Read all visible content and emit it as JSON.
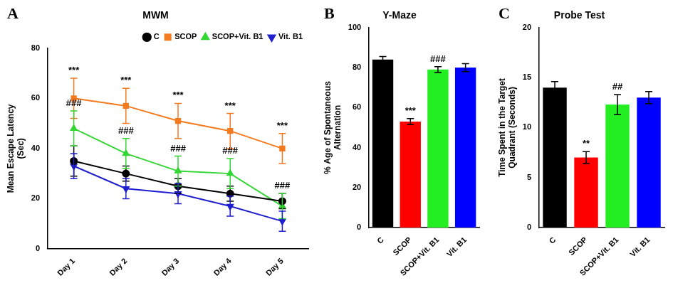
{
  "chart_data": [
    {
      "panel": "A",
      "type": "line",
      "title": "MWM",
      "y_label": [
        "Mean Escape Latency",
        "(Sec)"
      ],
      "categories": [
        "Day 1",
        "Day 2",
        "Day 3",
        "Day 4",
        "Day 5"
      ],
      "series": [
        {
          "name": "C",
          "color": "#000000",
          "marker": "circle",
          "values": [
            35,
            30,
            25,
            22,
            19
          ],
          "errors": [
            6,
            3,
            3,
            3,
            3
          ],
          "annotations": [
            null,
            null,
            null,
            null,
            null
          ]
        },
        {
          "name": "SCOP",
          "color": "#f47a20",
          "marker": "square",
          "values": [
            60,
            57,
            51,
            47,
            40
          ],
          "errors": [
            8,
            7,
            7,
            7,
            6
          ],
          "annotations": [
            "***",
            "***",
            "***",
            "***",
            "***"
          ]
        },
        {
          "name": "SCOP+Vit. B1",
          "color": "#33d633",
          "marker": "triangle",
          "values": [
            48,
            38,
            31,
            30,
            17
          ],
          "errors": [
            7,
            6,
            6,
            6,
            5
          ],
          "annotations": [
            "###",
            "###",
            "###",
            "###",
            "###"
          ]
        },
        {
          "name": "Vit. B1",
          "color": "#1f1fd0",
          "marker": "triangle-down",
          "values": [
            33,
            24,
            22,
            17,
            11
          ],
          "errors": [
            5,
            4,
            4,
            4,
            4
          ],
          "annotations": [
            null,
            null,
            null,
            null,
            null
          ]
        }
      ],
      "ylim": [
        0,
        80
      ],
      "yticks": [
        0,
        20,
        40,
        60,
        80
      ],
      "grid": false,
      "legend": "top"
    },
    {
      "panel": "B",
      "type": "bar",
      "title": "Y-Maze",
      "y_label": [
        "% Age of Spontaneous",
        "Alternation"
      ],
      "categories": [
        "C",
        "SCOP",
        "SCOP+Vit. B1",
        "Vit. B1"
      ],
      "values": [
        84,
        53,
        79,
        80
      ],
      "errors": [
        1.5,
        1.5,
        1.5,
        2
      ],
      "annotations": [
        null,
        "***",
        "###",
        null
      ],
      "colors": [
        "#000000",
        "#ff0000",
        "#22ee22",
        "#0000ff"
      ],
      "ylim": [
        0,
        100
      ],
      "yticks": [
        0,
        20,
        40,
        60,
        80,
        100
      ],
      "grid": false
    },
    {
      "panel": "C",
      "type": "bar",
      "title": "Probe Test",
      "y_label": [
        "Time Spent in the Target",
        "Quadrant (Seconds)"
      ],
      "categories": [
        "C",
        "SCOP",
        "SCOP+Vit. B1",
        "Vit. B1"
      ],
      "values": [
        14,
        7,
        12.3,
        13
      ],
      "errors": [
        0.6,
        0.6,
        1,
        0.6
      ],
      "annotations": [
        null,
        "**",
        "##",
        null
      ],
      "colors": [
        "#000000",
        "#ff0000",
        "#22ee22",
        "#0000ff"
      ],
      "ylim": [
        0,
        20
      ],
      "yticks": [
        0,
        5,
        10,
        15,
        20
      ],
      "grid": false
    }
  ]
}
